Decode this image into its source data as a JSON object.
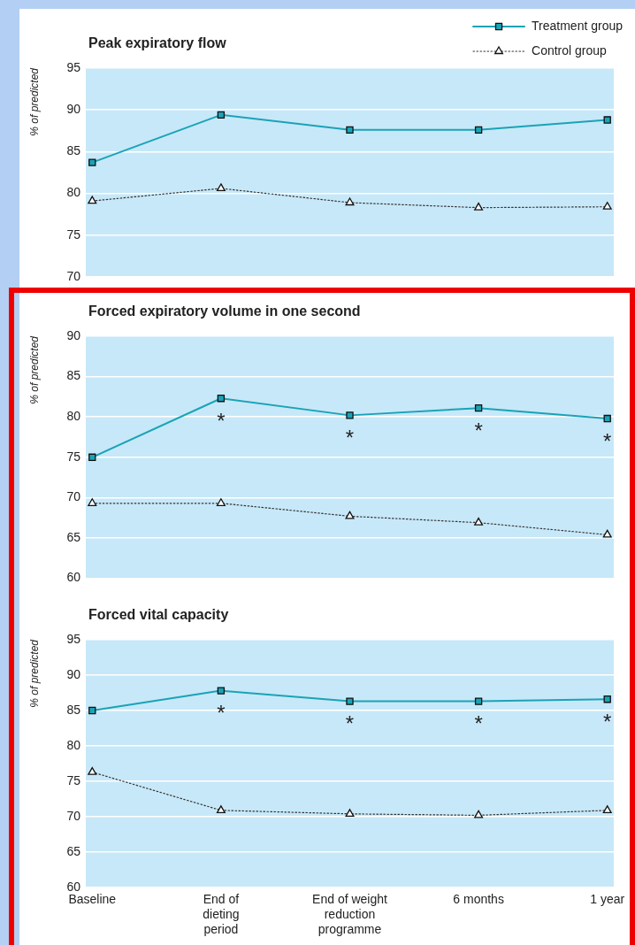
{
  "chart_data": [
    {
      "type": "line",
      "title": "Peak expiratory flow",
      "ylabel": "% of predicted",
      "categories": [
        "Baseline",
        "End of dieting period",
        "End of weight reduction programme",
        "6 months",
        "1 year"
      ],
      "series": [
        {
          "name": "Treatment group",
          "color": "#1aa3b7",
          "marker": "square",
          "line_style": "solid",
          "values": [
            83.7,
            89.4,
            87.6,
            87.6,
            88.8
          ]
        },
        {
          "name": "Control group",
          "color": "#333333",
          "marker": "triangle",
          "line_style": "dotted",
          "values": [
            79.1,
            80.6,
            78.9,
            78.3,
            78.4
          ]
        }
      ],
      "ylim": [
        70,
        95
      ],
      "yticks": [
        70,
        75,
        80,
        85,
        90,
        95
      ],
      "grid": "y",
      "legend": "top right",
      "tick_labels": "y"
    },
    {
      "type": "line",
      "title": "Forced expiratory volume in one second",
      "ylabel": "% of predicted",
      "categories": [
        "Baseline",
        "End of dieting period",
        "End of weight reduction programme",
        "6 months",
        "1 year"
      ],
      "series": [
        {
          "color": "#1aa3b7",
          "marker": "square",
          "line_style": "solid",
          "values": [
            75.0,
            82.3,
            80.2,
            81.1,
            79.8
          ]
        },
        {
          "color": "#333333",
          "marker": "triangle",
          "line_style": "dotted",
          "values": [
            69.3,
            69.3,
            67.7,
            66.9,
            65.4
          ]
        }
      ],
      "ylim": [
        60,
        90
      ],
      "yticks": [
        60,
        65,
        70,
        75,
        80,
        85,
        90
      ],
      "grid": "y",
      "tick_labels": "y",
      "annotations": [
        {
          "text": "*",
          "x": "End of dieting period",
          "y": 82.3
        },
        {
          "text": "*",
          "x": "End of weight reduction programme",
          "y": 80.2
        },
        {
          "text": "*",
          "x": "6 months",
          "y": 81.1
        },
        {
          "text": "*",
          "x": "1 year",
          "y": 79.8
        }
      ]
    },
    {
      "type": "line",
      "title": "Forced vital capacity",
      "ylabel": "% of predicted",
      "categories": [
        "Baseline",
        "End of dieting period",
        "End of weight reduction programme",
        "6 months",
        "1 year"
      ],
      "series": [
        {
          "color": "#1aa3b7",
          "marker": "square",
          "line_style": "solid",
          "values": [
            85.0,
            87.8,
            86.3,
            86.3,
            86.6
          ]
        },
        {
          "color": "#333333",
          "marker": "triangle",
          "line_style": "dotted",
          "values": [
            76.3,
            70.9,
            70.4,
            70.2,
            70.9
          ]
        }
      ],
      "ylim": [
        60,
        95
      ],
      "yticks": [
        60,
        65,
        70,
        75,
        80,
        85,
        90,
        95
      ],
      "grid": "y",
      "annotations": [
        {
          "text": "*",
          "x": "End of dieting period",
          "y": 87.8
        },
        {
          "text": "*",
          "x": "End of weight reduction programme",
          "y": 86.3
        },
        {
          "text": "*",
          "x": "6 months",
          "y": 86.3
        },
        {
          "text": "*",
          "x": "1 year",
          "y": 86.6
        }
      ]
    }
  ]
}
